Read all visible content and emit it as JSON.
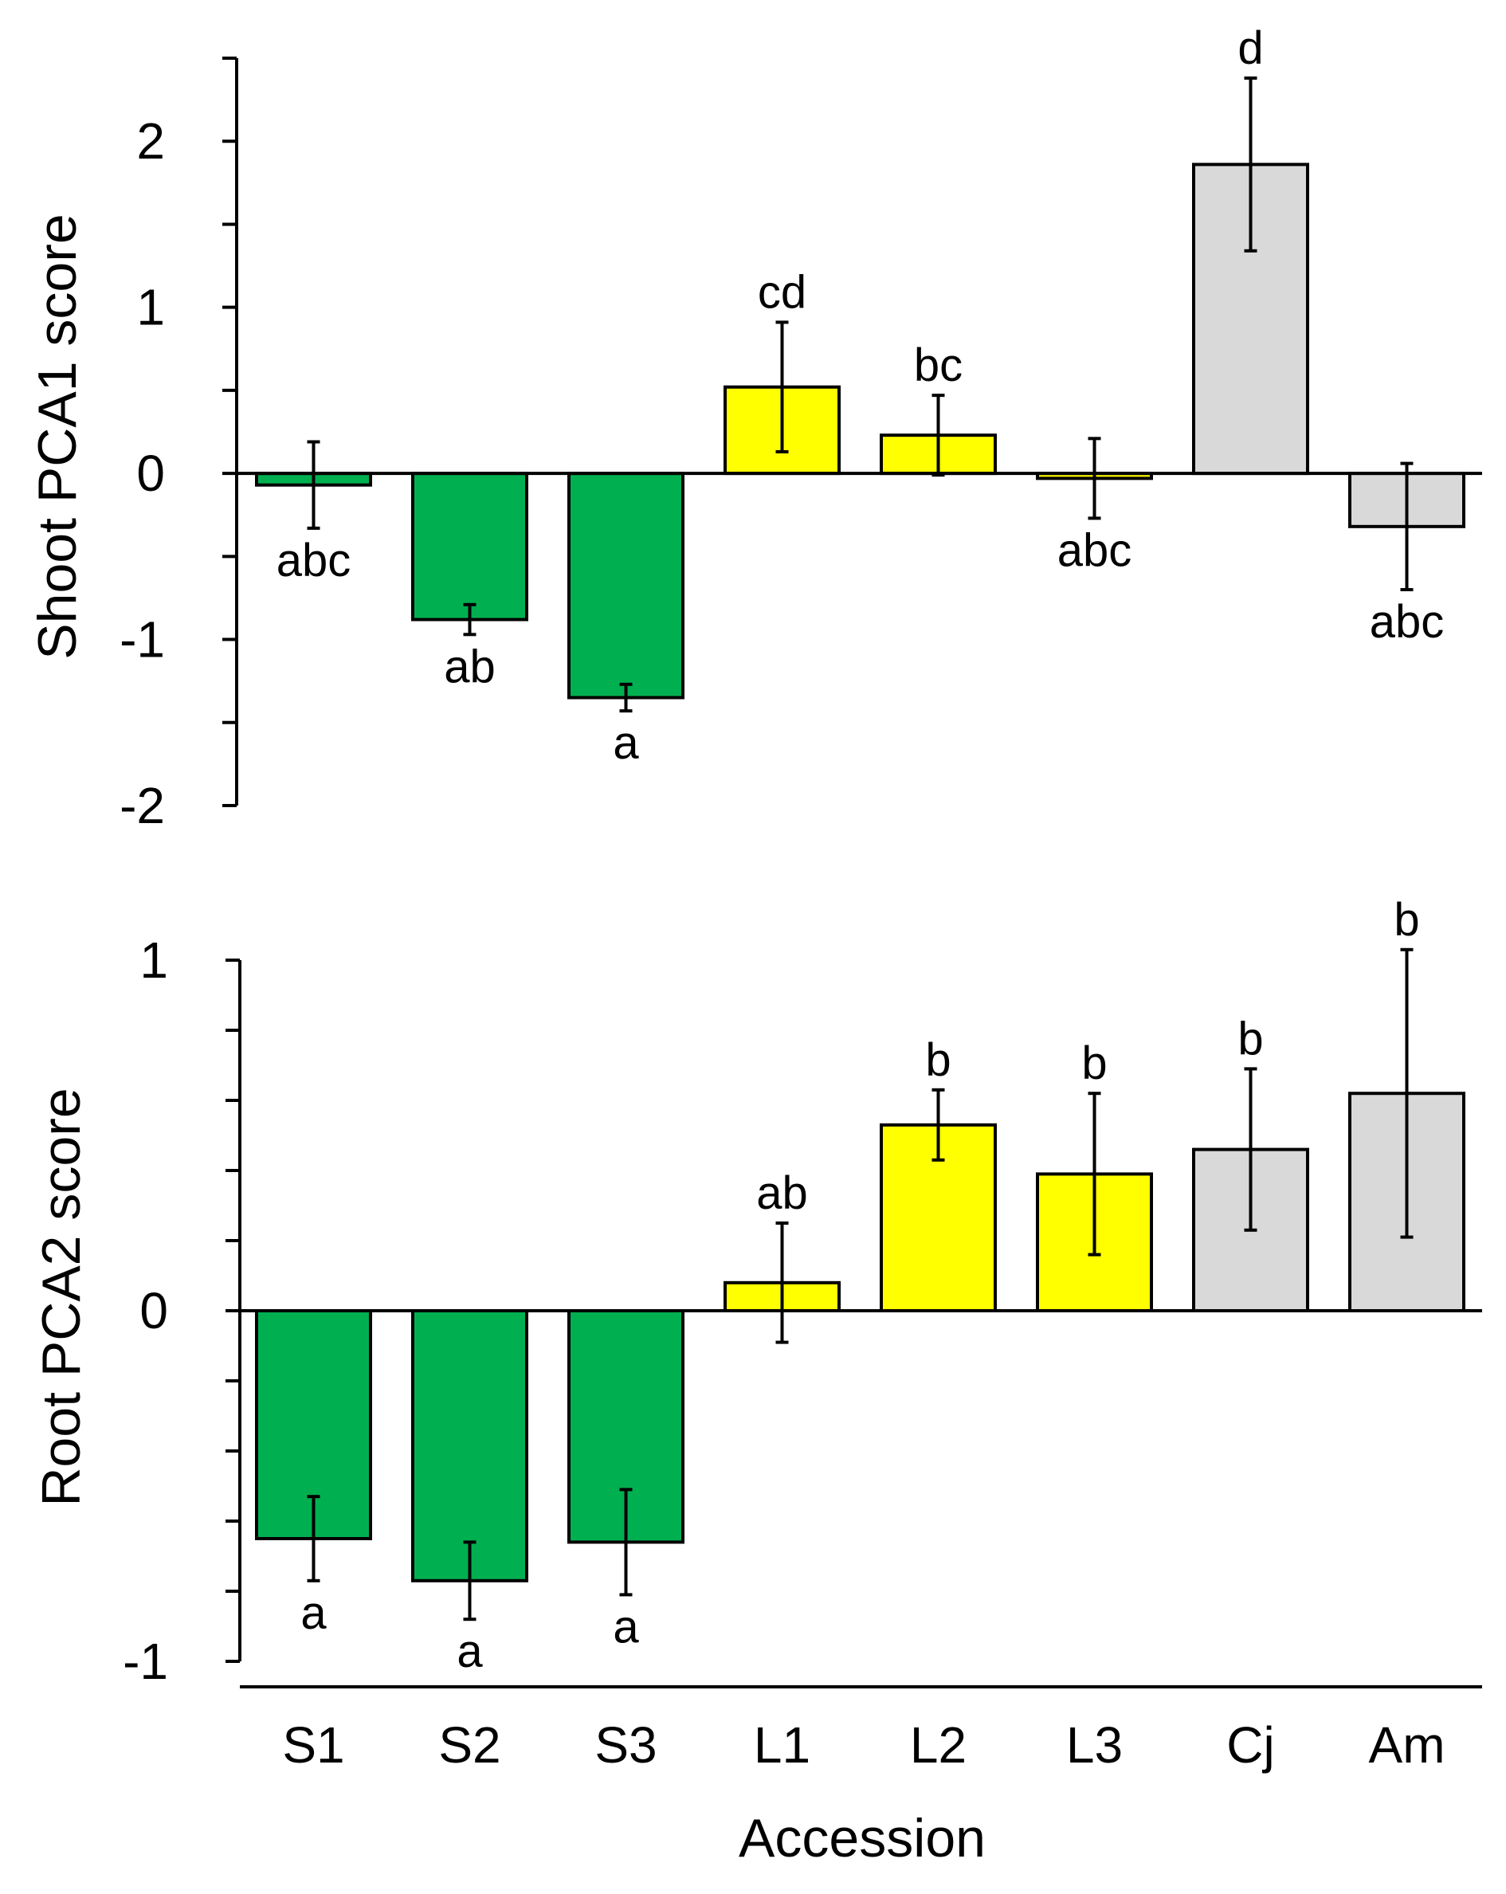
{
  "chart_data": [
    {
      "type": "bar",
      "ylabel": "Shoot PCA1 score",
      "categories": [
        "S1",
        "S2",
        "S3",
        "L1",
        "L2",
        "L3",
        "Cj",
        "Am"
      ],
      "values": [
        -0.07,
        -0.88,
        -1.35,
        0.52,
        0.23,
        -0.03,
        1.86,
        -0.32
      ],
      "errors": [
        0.26,
        0.09,
        0.08,
        0.39,
        0.24,
        0.24,
        0.52,
        0.38
      ],
      "significance": [
        "abc",
        "ab",
        "a",
        "cd",
        "bc",
        "abc",
        "d",
        "abc"
      ],
      "colors": [
        "#00b050",
        "#00b050",
        "#00b050",
        "#ffff00",
        "#ffff00",
        "#ffff00",
        "#d9d9d9",
        "#d9d9d9"
      ],
      "yticks": [
        -2,
        -1,
        0,
        1,
        2
      ],
      "ylim": [
        -2,
        2.5
      ]
    },
    {
      "type": "bar",
      "ylabel": "Root PCA2 score",
      "xlabel": "Accession",
      "categories": [
        "S1",
        "S2",
        "S3",
        "L1",
        "L2",
        "L3",
        "Cj",
        "Am"
      ],
      "values": [
        -0.65,
        -0.77,
        -0.66,
        0.08,
        0.53,
        0.39,
        0.46,
        0.62
      ],
      "errors": [
        0.12,
        0.11,
        0.15,
        0.17,
        0.1,
        0.23,
        0.23,
        0.41
      ],
      "significance": [
        "a",
        "a",
        "a",
        "ab",
        "b",
        "b",
        "b",
        "b"
      ],
      "colors": [
        "#00b050",
        "#00b050",
        "#00b050",
        "#ffff00",
        "#ffff00",
        "#ffff00",
        "#d9d9d9",
        "#d9d9d9"
      ],
      "yticks": [
        -1,
        0,
        1
      ],
      "ylim": [
        -1,
        1
      ]
    }
  ]
}
